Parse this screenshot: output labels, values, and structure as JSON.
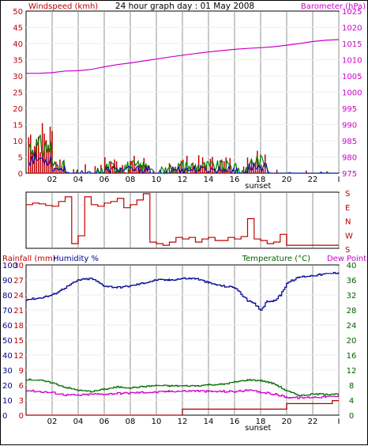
{
  "title": "24 hour graph day : 01 May 2008",
  "colors": {
    "wind": "#d00000",
    "gust": "#c00000",
    "avg": "#0000c0",
    "dir": "#008000",
    "baro": "#cc00cc",
    "grid": "#c8c8c8",
    "rain": "#b00000",
    "humidity": "#000090",
    "temp": "#007000",
    "dewpoint": "#cc00cc",
    "winddir": "#c00000",
    "axis_red": "#c00000",
    "axis_blue": "#000090",
    "axis_green": "#006000",
    "axis_pink": "#cc00cc"
  },
  "hour_labels": [
    "02",
    "04",
    "06",
    "08",
    "10",
    "12",
    "14",
    "16",
    "18",
    "20",
    "22",
    "I"
  ],
  "sunset_label": "sunset",
  "top_chart": {
    "left_label": "Windspeed (kmh)",
    "right_label": "Barometer (hPa)",
    "left_ticks": [
      "50",
      "45",
      "40",
      "35",
      "30",
      "25",
      "20",
      "15",
      "10",
      "5",
      "0"
    ],
    "right_ticks": [
      "1025",
      "1020",
      "1015",
      "1010",
      "1005",
      "1000",
      "995",
      "990",
      "985",
      "980",
      "975"
    ]
  },
  "dir_chart": {
    "dir_labels": [
      "S",
      "E",
      "N",
      "W",
      "S"
    ]
  },
  "bottom_chart": {
    "rain_label": "Rainfall (mm)",
    "hum_label": "Humidity %",
    "temp_label": "Temperature (°C)",
    "dew_label": "Dew Point",
    "rain_ticks": [
      "30",
      "27",
      "24",
      "21",
      "18",
      "15",
      "12",
      "9",
      "6",
      "3",
      "0"
    ],
    "hum_ticks": [
      "100",
      "90",
      "80",
      "70",
      "60",
      "50",
      "40",
      "30",
      "20",
      "10",
      "0"
    ],
    "temp_ticks": [
      "40",
      "36",
      "32",
      "28",
      "24",
      "20",
      "16",
      "12",
      "8",
      "4",
      "0"
    ]
  },
  "chart_data": [
    {
      "type": "line",
      "title": "24 hour graph day : 01 May 2008",
      "ylabel": "Windspeed (kmh)",
      "y2label": "Barometer (hPa)",
      "ylim": [
        0,
        50
      ],
      "y2lim": [
        975,
        1025
      ],
      "x_hours": [
        0,
        24
      ],
      "series": [
        {
          "name": "Barometer (hPa)",
          "x": [
            0,
            1,
            2,
            3,
            4,
            5,
            6,
            7,
            8,
            9,
            10,
            11,
            12,
            13,
            14,
            15,
            16,
            17,
            18,
            19,
            20,
            21,
            22,
            23,
            24
          ],
          "values": [
            1005.8,
            1005.8,
            1006,
            1006.5,
            1006.6,
            1007,
            1007.8,
            1008.5,
            1009,
            1009.6,
            1010.2,
            1010.8,
            1011.4,
            1011.9,
            1012.4,
            1012.8,
            1013.2,
            1013.5,
            1013.7,
            1014,
            1014.5,
            1015,
            1015.6,
            1016,
            1016.2
          ]
        }
      ]
    },
    {
      "type": "line",
      "dir_labels": [
        "S",
        "E",
        "N",
        "W",
        "S"
      ],
      "series": [
        {
          "name": "Wind direction (deg)",
          "x": [
            0,
            0.5,
            1,
            1.5,
            2,
            2.5,
            3,
            3.5,
            4,
            4.5,
            5,
            5.5,
            6,
            6.5,
            7,
            7.5,
            8,
            8.5,
            9,
            9.5,
            10,
            10.5,
            11,
            11.5,
            12,
            12.5,
            13,
            13.5,
            14,
            14.5,
            15,
            15.5,
            16,
            16.5,
            17,
            17.5,
            18,
            18.5,
            19,
            19.5,
            20,
            24
          ],
          "values": [
            100,
            110,
            105,
            95,
            90,
            120,
            150,
            210,
            260,
            150,
            100,
            90,
            110,
            120,
            140,
            80,
            100,
            130,
            170,
            220,
            210,
            200,
            220,
            250,
            240,
            250,
            220,
            240,
            250,
            230,
            230,
            250,
            240,
            255,
            10,
            240,
            230,
            210,
            220,
            270,
            200,
            200
          ]
        }
      ]
    },
    {
      "type": "line",
      "ylabel": "Rainfall (mm)",
      "y2label": "Temperature (°C)",
      "series": [
        {
          "name": "Humidity %",
          "x": [
            0,
            1,
            2,
            3,
            4,
            5,
            6,
            7,
            8,
            9,
            10,
            11,
            12,
            13,
            14,
            15,
            16,
            17,
            17.5,
            18,
            18.5,
            19,
            19.5,
            20,
            21,
            22,
            23,
            24
          ],
          "values": [
            77,
            78,
            80,
            85,
            90,
            91,
            86,
            85,
            86,
            88,
            90,
            90,
            91,
            91,
            88,
            86,
            85,
            76,
            74,
            70,
            76,
            76,
            80,
            88,
            92,
            93,
            94,
            95
          ]
        },
        {
          "name": "Temperature (°C)",
          "x": [
            0,
            1,
            2,
            3,
            4,
            5,
            6,
            7,
            8,
            9,
            10,
            11,
            12,
            13,
            14,
            15,
            16,
            17,
            18,
            19,
            20,
            21,
            22,
            23,
            24
          ],
          "values": [
            9.5,
            9.3,
            8.6,
            7.4,
            6.6,
            6.3,
            6.9,
            7.5,
            7.3,
            7.6,
            7.9,
            7.8,
            7.8,
            7.8,
            8.1,
            8.2,
            8.8,
            9.4,
            9.2,
            8.4,
            6.4,
            5.2,
            5.6,
            5.6,
            5.6
          ]
        },
        {
          "name": "Dew Point",
          "x": [
            0,
            1,
            2,
            3,
            4,
            5,
            6,
            7,
            8,
            9,
            10,
            11,
            12,
            13,
            14,
            15,
            16,
            17,
            18,
            19,
            20,
            21,
            22,
            23,
            24
          ],
          "values": [
            6.6,
            6.3,
            6.0,
            5.4,
            5.3,
            5.6,
            5.6,
            5.8,
            5.9,
            6.1,
            6.1,
            6.4,
            6.4,
            6.5,
            6.3,
            6.3,
            6.3,
            6.6,
            6.1,
            5.6,
            4.8,
            4.6,
            4.8,
            4.9,
            5.0
          ]
        },
        {
          "name": "Rainfall (mm)",
          "x": [
            0,
            11,
            12,
            16,
            20,
            23,
            23.5,
            24
          ],
          "values": [
            0,
            0,
            1.2,
            1.2,
            2.3,
            2.3,
            2.9,
            2.9
          ]
        }
      ]
    }
  ]
}
